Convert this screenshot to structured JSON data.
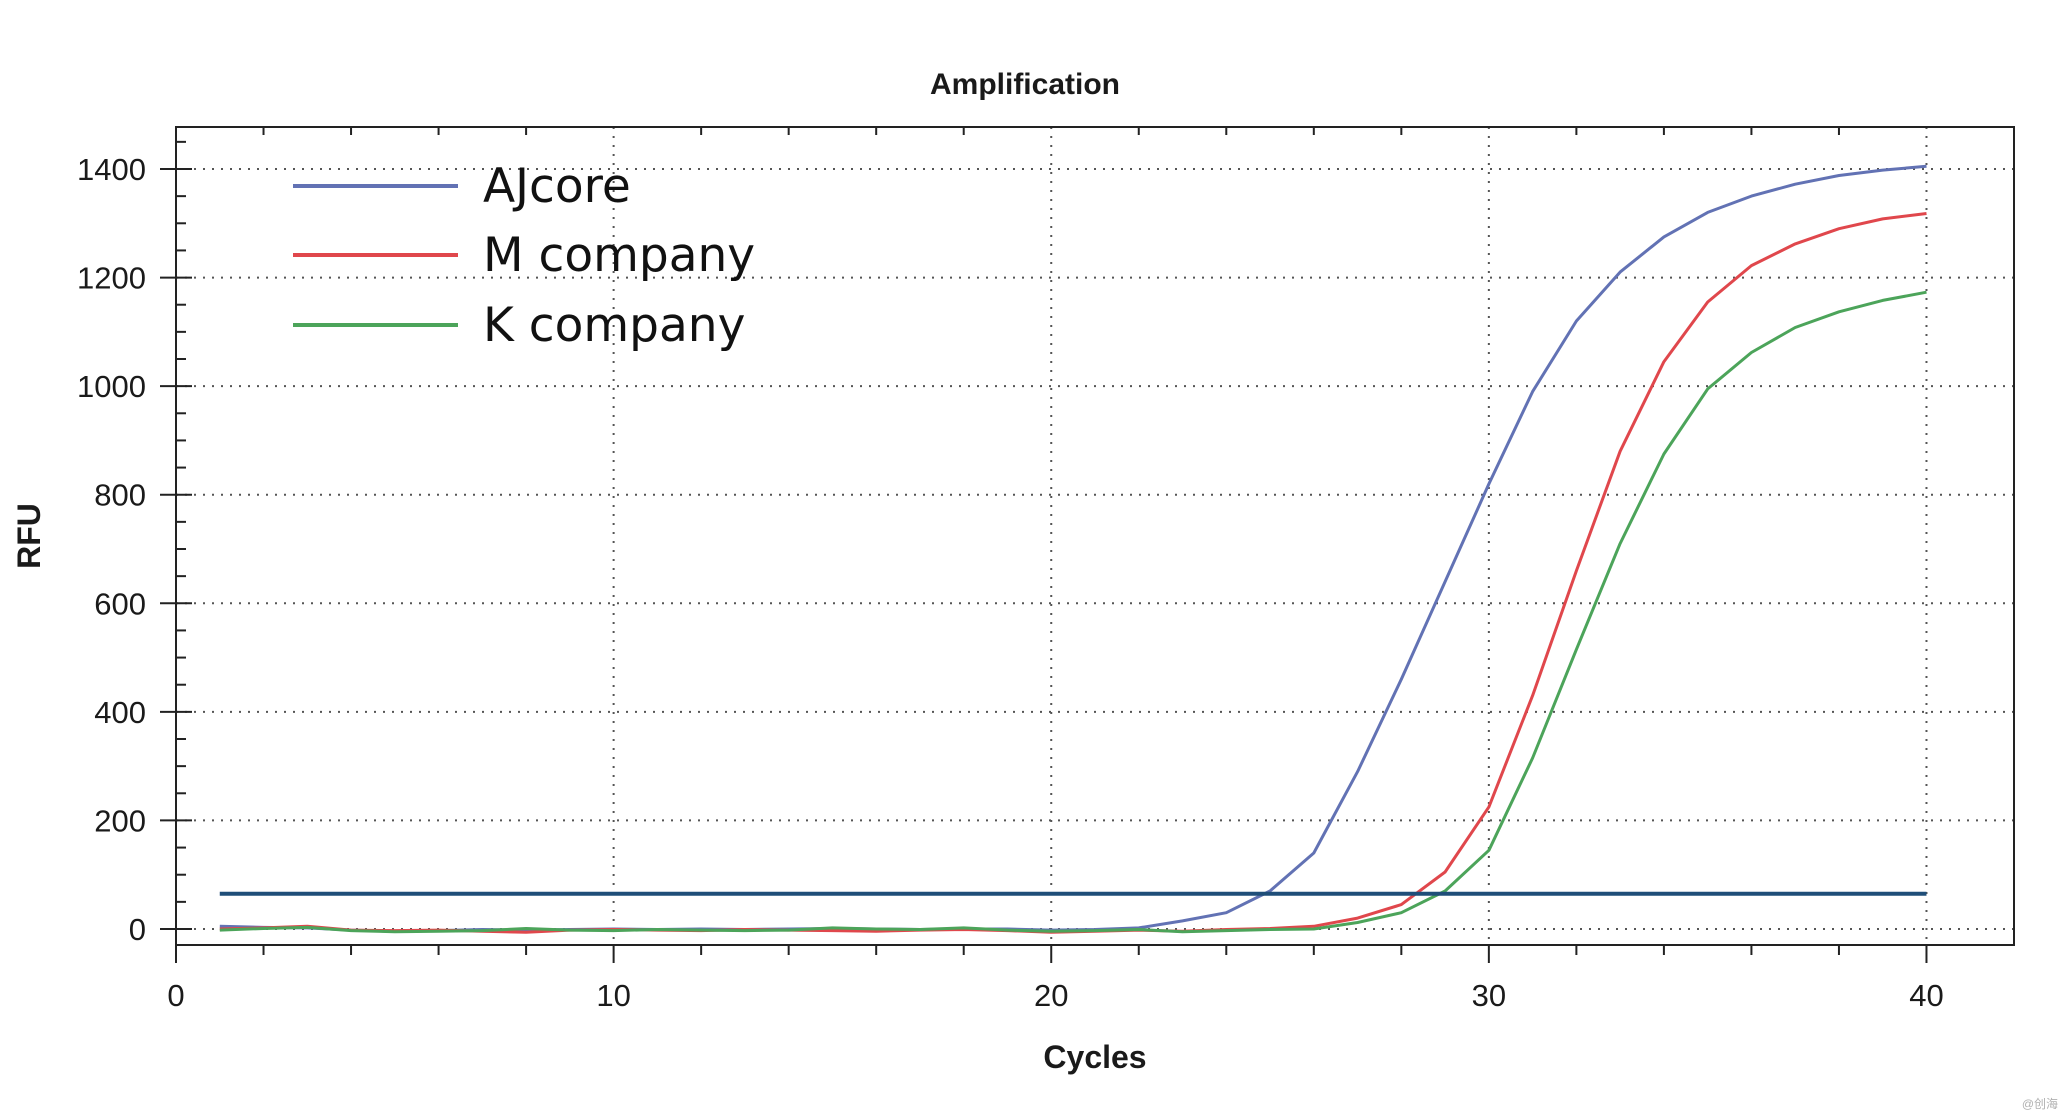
{
  "chart_data": {
    "type": "line",
    "title": "Amplification",
    "xlabel": "Cycles",
    "ylabel": "RFU",
    "xlim": [
      0,
      42
    ],
    "ylim": [
      -30,
      1480
    ],
    "x_ticks": [
      0,
      10,
      20,
      30,
      40
    ],
    "y_ticks": [
      0,
      200,
      400,
      600,
      800,
      1000,
      1200,
      1400
    ],
    "x_tick_labels": [
      "0",
      "10",
      "20",
      "30",
      "40"
    ],
    "y_tick_labels": [
      "0",
      "200",
      "400",
      "600",
      "800",
      "1000",
      "1200",
      "1400"
    ],
    "grid": true,
    "legend_position": "top-left",
    "threshold": {
      "value": 65,
      "x_start": 1,
      "x_end": 40,
      "color": "#1f4e79"
    },
    "series": [
      {
        "name": "AJcore",
        "color": "#6272b4",
        "x": [
          1,
          2,
          3,
          4,
          5,
          6,
          7,
          8,
          9,
          10,
          11,
          12,
          13,
          14,
          15,
          16,
          17,
          18,
          19,
          20,
          21,
          22,
          23,
          24,
          25,
          26,
          27,
          28,
          29,
          30,
          31,
          32,
          33,
          34,
          35,
          36,
          37,
          38,
          39,
          40
        ],
        "values": [
          5,
          3,
          2,
          -2,
          -4,
          -3,
          -1,
          -2,
          -1,
          0,
          -1,
          0,
          -1,
          0,
          1,
          0,
          -1,
          0,
          0,
          -2,
          -1,
          2,
          15,
          30,
          70,
          140,
          290,
          460,
          640,
          820,
          990,
          1120,
          1210,
          1275,
          1320,
          1350,
          1372,
          1388,
          1398,
          1405
        ]
      },
      {
        "name": "M company",
        "color": "#e0474c",
        "x": [
          1,
          2,
          3,
          4,
          5,
          6,
          7,
          8,
          9,
          10,
          11,
          12,
          13,
          14,
          15,
          16,
          17,
          18,
          19,
          20,
          21,
          22,
          23,
          24,
          25,
          26,
          27,
          28,
          29,
          30,
          31,
          32,
          33,
          34,
          35,
          36,
          37,
          38,
          39,
          40
        ],
        "values": [
          0,
          2,
          5,
          -2,
          -3,
          -2,
          -4,
          -6,
          -2,
          -1,
          -2,
          -3,
          -1,
          -2,
          -3,
          -4,
          -2,
          -1,
          -3,
          -6,
          -4,
          -2,
          -4,
          -1,
          1,
          5,
          20,
          45,
          105,
          225,
          430,
          660,
          880,
          1045,
          1155,
          1222,
          1262,
          1290,
          1308,
          1318
        ]
      },
      {
        "name": "K company",
        "color": "#4ca45a",
        "x": [
          1,
          2,
          3,
          4,
          5,
          6,
          7,
          8,
          9,
          10,
          11,
          12,
          13,
          14,
          15,
          16,
          17,
          18,
          19,
          20,
          21,
          22,
          23,
          24,
          25,
          26,
          27,
          28,
          29,
          30,
          31,
          32,
          33,
          34,
          35,
          36,
          37,
          38,
          39,
          40
        ],
        "values": [
          -2,
          1,
          3,
          -3,
          -5,
          -4,
          -3,
          1,
          -2,
          -3,
          -1,
          -2,
          -3,
          -2,
          2,
          0,
          -1,
          2,
          -2,
          -4,
          -3,
          -1,
          -5,
          -3,
          -1,
          0,
          12,
          30,
          70,
          145,
          315,
          515,
          710,
          875,
          995,
          1062,
          1108,
          1137,
          1158,
          1173
        ]
      }
    ]
  },
  "watermark_text": "@创海"
}
